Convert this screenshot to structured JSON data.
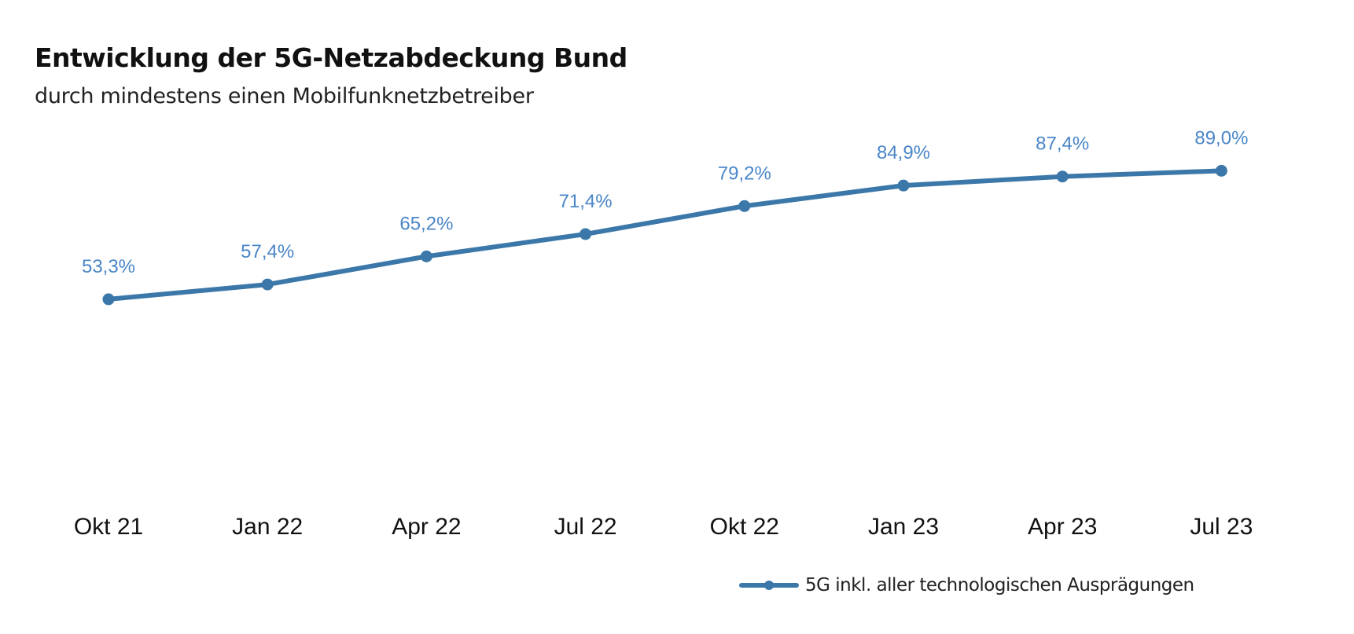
{
  "chart_data": {
    "type": "line",
    "title": "Entwicklung der 5G-Netzabdeckung Bund",
    "subtitle": "durch mindestens einen Mobilfunknetzbetreiber",
    "categories": [
      "Okt 21",
      "Jan 22",
      "Apr 22",
      "Jul 22",
      "Okt 22",
      "Jan 23",
      "Apr 23",
      "Jul 23"
    ],
    "series": [
      {
        "name": "5G inkl. aller technologischen Ausprägungen",
        "values": [
          53.3,
          57.4,
          65.2,
          71.4,
          79.2,
          84.9,
          87.4,
          89.0
        ],
        "labels": [
          "53,3%",
          "57,4%",
          "65,2%",
          "71,4%",
          "79,2%",
          "84,9%",
          "87,4%",
          "89,0%"
        ],
        "color": "#3b78a9",
        "label_color": "#4a86c8"
      }
    ],
    "ylim": [
      0,
      100
    ],
    "y_axis_visible": false,
    "grid": false,
    "legend_position": "bottom-right"
  }
}
